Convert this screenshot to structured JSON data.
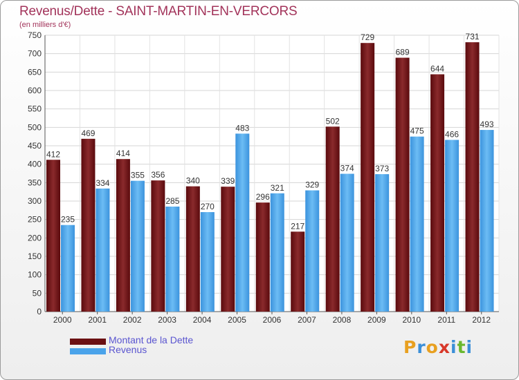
{
  "title": "Revenus/Dette - SAINT-MARTIN-EN-VERCORS",
  "subtitle": "(en milliers d'€)",
  "colors": {
    "dette": "#7a1f22",
    "revenus": "#4aa3ea",
    "title": "#a2335a",
    "legend_text": "#5a55d0"
  },
  "legend": [
    {
      "label": "Montant de la Dette",
      "color": "#6b0f12"
    },
    {
      "label": "Revenus",
      "color": "#4aa3ea"
    }
  ],
  "logo": {
    "letters": [
      "P",
      "r",
      "o",
      "x",
      "i",
      "t",
      "i"
    ],
    "colors": [
      "#e8a020",
      "#3b8fd8",
      "#e8a020",
      "#d8382a",
      "#3b8fd8",
      "#6ab830",
      "#3b8fd8"
    ]
  },
  "chart_data": {
    "type": "bar",
    "title": "Revenus/Dette - SAINT-MARTIN-EN-VERCORS",
    "subtitle": "(en milliers d'€)",
    "categories": [
      "2000",
      "2001",
      "2002",
      "2003",
      "2004",
      "2005",
      "2006",
      "2007",
      "2008",
      "2009",
      "2010",
      "2011",
      "2012"
    ],
    "series": [
      {
        "name": "Montant de la Dette",
        "values": [
          412,
          469,
          414,
          356,
          340,
          339,
          296,
          217,
          502,
          729,
          689,
          644,
          731
        ]
      },
      {
        "name": "Revenus",
        "values": [
          235,
          334,
          355,
          285,
          270,
          483,
          321,
          329,
          374,
          373,
          475,
          466,
          493
        ]
      }
    ],
    "ylim": [
      0,
      750
    ],
    "yticks": [
      0,
      50,
      100,
      150,
      200,
      250,
      300,
      350,
      400,
      450,
      500,
      550,
      600,
      650,
      700,
      750
    ],
    "grid": true,
    "legend_position": "bottom-left",
    "xlabel": "",
    "ylabel": ""
  }
}
